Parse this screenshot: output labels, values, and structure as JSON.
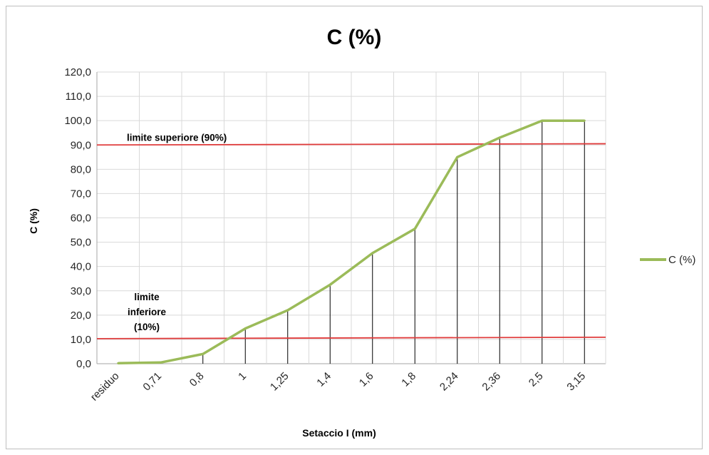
{
  "chart_data": {
    "type": "line",
    "title": "C (%)",
    "xlabel": "Setaccio I (mm)",
    "ylabel": "C (%)",
    "categories": [
      "residuo",
      "0,71",
      "0,8",
      "1",
      "1,25",
      "1,4",
      "1,6",
      "1,8",
      "2,24",
      "2,36",
      "2,5",
      "3,15"
    ],
    "series": [
      {
        "name": "C (%)",
        "color": "#9bbb59",
        "values": [
          0.2,
          0.5,
          4.0,
          14.5,
          22.0,
          32.5,
          45.5,
          55.5,
          85.0,
          93.0,
          100.0,
          100.0
        ]
      }
    ],
    "ylim": [
      0,
      120
    ],
    "ytick_step": 10,
    "ytick_labels": [
      "0,0",
      "10,0",
      "20,0",
      "30,0",
      "40,0",
      "50,0",
      "60,0",
      "70,0",
      "80,0",
      "90,0",
      "100,0",
      "110,0",
      "120,0"
    ],
    "grid": true,
    "drop_lines": true,
    "legend_position": "right",
    "reference_lines": [
      {
        "label": "limite superiore (90%)",
        "label_lines": [
          "limite superiore (90%)"
        ],
        "y_start": 90.0,
        "y_end": 90.5,
        "color": "#e03c3c"
      },
      {
        "label": "limite inferiore (10%)",
        "label_lines": [
          "limite",
          "inferiore",
          "(10%)"
        ],
        "y_start": 10.3,
        "y_end": 10.9,
        "color": "#e03c3c"
      }
    ]
  }
}
